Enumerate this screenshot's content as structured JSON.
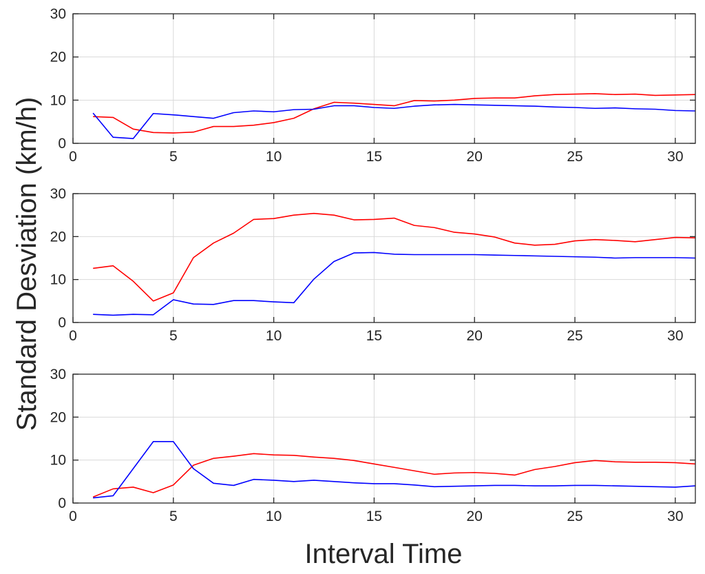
{
  "chart_data": [
    {
      "type": "line",
      "xlim": [
        0,
        31
      ],
      "ylim": [
        0,
        30
      ],
      "xticks": [
        0,
        5,
        10,
        15,
        20,
        25,
        30
      ],
      "yticks": [
        0,
        10,
        20,
        30
      ],
      "grid": true,
      "x": [
        1,
        2,
        3,
        4,
        5,
        6,
        7,
        8,
        9,
        10,
        11,
        12,
        13,
        14,
        15,
        16,
        17,
        18,
        19,
        20,
        21,
        22,
        23,
        24,
        25,
        26,
        27,
        28,
        29,
        30,
        31
      ],
      "series": [
        {
          "name": "red",
          "color": "#ff0000",
          "values": [
            6.2,
            6.0,
            3.3,
            2.5,
            2.4,
            2.6,
            3.9,
            3.9,
            4.2,
            4.8,
            5.8,
            8.0,
            9.5,
            9.3,
            9.0,
            8.7,
            9.9,
            9.8,
            10.0,
            10.4,
            10.5,
            10.5,
            11.0,
            11.3,
            11.4,
            11.5,
            11.3,
            11.4,
            11.1,
            11.2,
            11.3
          ]
        },
        {
          "name": "blue",
          "color": "#0000ff",
          "values": [
            7.0,
            1.4,
            1.1,
            6.9,
            6.6,
            6.2,
            5.8,
            7.1,
            7.5,
            7.3,
            7.8,
            7.9,
            8.7,
            8.7,
            8.3,
            8.1,
            8.6,
            8.9,
            9.0,
            8.9,
            8.8,
            8.7,
            8.6,
            8.4,
            8.3,
            8.1,
            8.2,
            8.0,
            7.9,
            7.6,
            7.5
          ]
        }
      ]
    },
    {
      "type": "line",
      "xlim": [
        0,
        31
      ],
      "ylim": [
        0,
        30
      ],
      "xticks": [
        0,
        5,
        10,
        15,
        20,
        25,
        30
      ],
      "yticks": [
        0,
        10,
        20,
        30
      ],
      "grid": true,
      "x": [
        1,
        2,
        3,
        4,
        5,
        6,
        7,
        8,
        9,
        10,
        11,
        12,
        13,
        14,
        15,
        16,
        17,
        18,
        19,
        20,
        21,
        22,
        23,
        24,
        25,
        26,
        27,
        28,
        29,
        30,
        31
      ],
      "series": [
        {
          "name": "red",
          "color": "#ff0000",
          "values": [
            12.6,
            13.2,
            9.6,
            5.0,
            6.9,
            15.1,
            18.5,
            20.8,
            24.0,
            24.2,
            25.0,
            25.4,
            25.0,
            23.9,
            24.0,
            24.3,
            22.6,
            22.1,
            21.0,
            20.6,
            19.9,
            18.5,
            18.0,
            18.2,
            19.0,
            19.3,
            19.1,
            18.8,
            19.3,
            19.8,
            19.7
          ]
        },
        {
          "name": "blue",
          "color": "#0000ff",
          "values": [
            1.9,
            1.7,
            1.9,
            1.8,
            5.3,
            4.3,
            4.2,
            5.1,
            5.1,
            4.8,
            4.6,
            10.1,
            14.2,
            16.2,
            16.3,
            15.9,
            15.8,
            15.8,
            15.8,
            15.8,
            15.7,
            15.6,
            15.5,
            15.4,
            15.3,
            15.2,
            15.0,
            15.1,
            15.1,
            15.1,
            15.0
          ]
        }
      ]
    },
    {
      "type": "line",
      "xlim": [
        0,
        31
      ],
      "ylim": [
        0,
        30
      ],
      "xticks": [
        0,
        5,
        10,
        15,
        20,
        25,
        30
      ],
      "yticks": [
        0,
        10,
        20,
        30
      ],
      "grid": true,
      "x": [
        1,
        2,
        3,
        4,
        5,
        6,
        7,
        8,
        9,
        10,
        11,
        12,
        13,
        14,
        15,
        16,
        17,
        18,
        19,
        20,
        21,
        22,
        23,
        24,
        25,
        26,
        27,
        28,
        29,
        30,
        31
      ],
      "series": [
        {
          "name": "red",
          "color": "#ff0000",
          "values": [
            1.4,
            3.3,
            3.7,
            2.4,
            4.2,
            8.8,
            10.4,
            10.9,
            11.5,
            11.2,
            11.1,
            10.7,
            10.4,
            9.9,
            9.1,
            8.3,
            7.5,
            6.7,
            7.0,
            7.1,
            6.9,
            6.5,
            7.8,
            8.5,
            9.4,
            9.9,
            9.6,
            9.5,
            9.5,
            9.4,
            9.1
          ]
        },
        {
          "name": "blue",
          "color": "#0000ff",
          "values": [
            1.2,
            1.7,
            8.0,
            14.3,
            14.3,
            8.0,
            4.6,
            4.1,
            5.5,
            5.3,
            5.0,
            5.3,
            5.0,
            4.7,
            4.5,
            4.5,
            4.2,
            3.8,
            3.9,
            4.0,
            4.1,
            4.1,
            4.0,
            4.0,
            4.1,
            4.1,
            4.0,
            3.9,
            3.8,
            3.7,
            4.0
          ]
        }
      ]
    }
  ],
  "figure": {
    "ylabel": "Standard Desviation (km/h)",
    "xlabel": "Interval Time"
  }
}
